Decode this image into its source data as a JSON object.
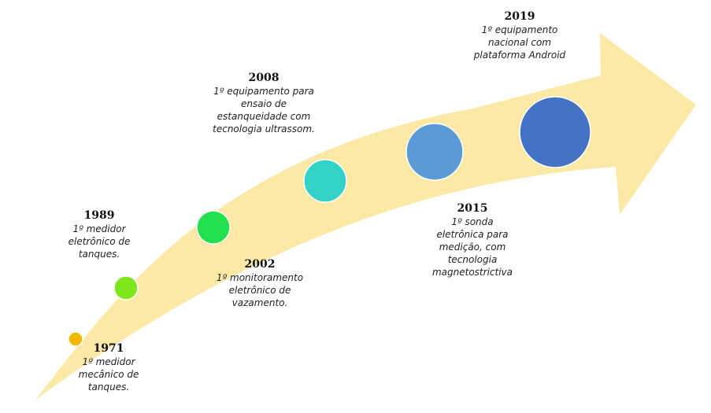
{
  "colors": {
    "arrow": "#fde9a6"
  },
  "milestones": [
    {
      "year": "1971",
      "lines": [
        "1º medidor",
        "mecânico de",
        "tanques."
      ],
      "color": "#f5b800"
    },
    {
      "year": "1989",
      "lines": [
        "1º medidor",
        "eletrônico de",
        "tanques."
      ],
      "color": "#7ee61c"
    },
    {
      "year": "2002",
      "lines": [
        "1º monitoramento",
        "eletrônico de",
        "vazamento."
      ],
      "color": "#22e04e"
    },
    {
      "year": "2008",
      "lines": [
        "1º equipamento para",
        "ensaio de",
        "estanqueidade com",
        "tecnologia ultrassom."
      ],
      "color": "#33d1c6"
    },
    {
      "year": "2015",
      "lines": [
        "1º sonda",
        "eletrônica para",
        "medição, com",
        "tecnologia",
        "magnetostrictiva"
      ],
      "color": "#5b9bd5"
    },
    {
      "year": "2019",
      "lines": [
        "1º equipamento",
        "nacional com",
        "plataforma Android"
      ],
      "color": "#4472c4"
    }
  ]
}
